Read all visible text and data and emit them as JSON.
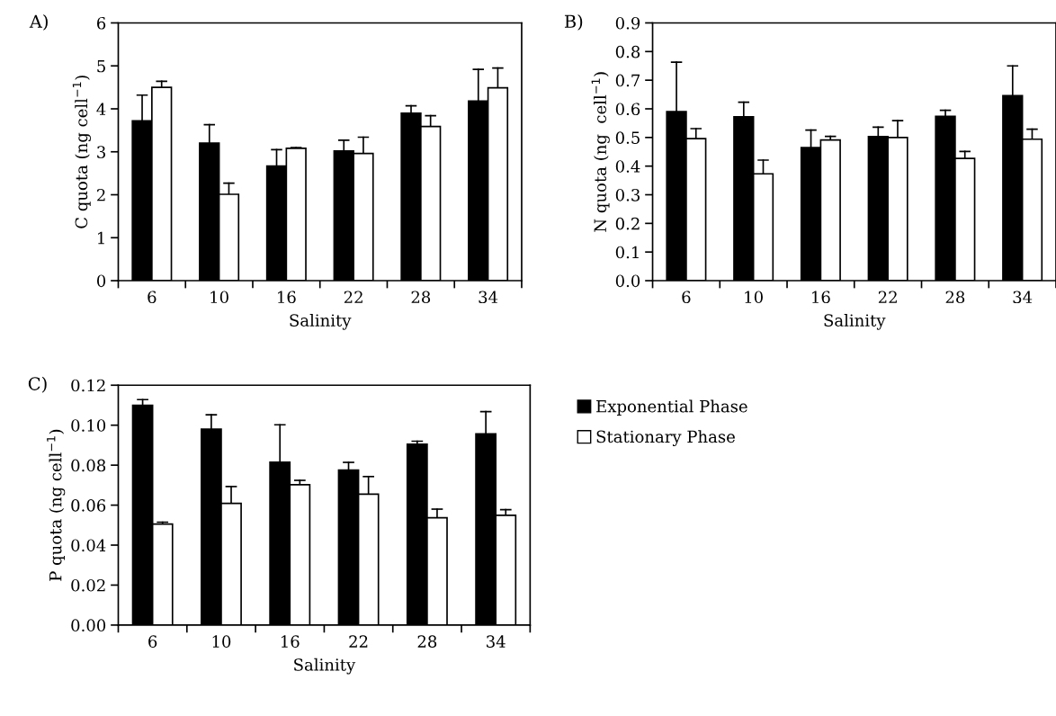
{
  "chart_data": [
    {
      "type": "bar",
      "title": "A)",
      "xlabel": "Salinity",
      "ylabel": "C quota (ng cell$^{−1}$)",
      "categories": [
        "6",
        "10",
        "16",
        "22",
        "28",
        "34"
      ],
      "ylim": [
        0,
        6
      ],
      "yticks": [
        0,
        1,
        2,
        3,
        4,
        5,
        6
      ],
      "grid": false,
      "legend": false,
      "series": [
        {
          "color": "#000000",
          "values": [
            3.72,
            3.2,
            2.67,
            3.02,
            3.9,
            4.18
          ],
          "errors": [
            [
              3.72,
              4.32
            ],
            [
              3.2,
              3.63
            ],
            [
              2.67,
              3.05
            ],
            [
              3.02,
              3.27
            ],
            [
              3.9,
              4.07
            ],
            [
              4.18,
              4.92
            ]
          ]
        },
        {
          "color": "#ffffff",
          "values": [
            4.5,
            2.01,
            3.08,
            2.96,
            3.59,
            4.49
          ],
          "errors": [
            [
              4.5,
              4.64
            ],
            [
              2.01,
              2.27
            ],
            [
              3.08,
              3.1
            ],
            [
              2.96,
              3.34
            ],
            [
              3.59,
              3.84
            ],
            [
              4.49,
              4.95
            ]
          ]
        }
      ]
    },
    {
      "type": "bar",
      "title": "B)",
      "xlabel": "Salinity",
      "ylabel": "N quota (ng  cell$^{−1}$)",
      "categories": [
        "6",
        "10",
        "16",
        "22",
        "28",
        "34"
      ],
      "ylim": [
        0,
        0.9
      ],
      "yticks": [
        {
          "value": 0,
          "label": "0.0"
        },
        0.1,
        0.2,
        0.3,
        0.4,
        0.5,
        0.6,
        0.7,
        0.8,
        0.9
      ],
      "grid": false,
      "legend": false,
      "series": [
        {
          "color": "#000000",
          "values": [
            0.59,
            0.572,
            0.465,
            0.503,
            0.574,
            0.646
          ],
          "errors": [
            [
              0.59,
              0.763
            ],
            [
              0.572,
              0.623
            ],
            [
              0.465,
              0.526
            ],
            [
              0.503,
              0.536
            ],
            [
              0.574,
              0.595
            ],
            [
              0.646,
              0.75
            ]
          ]
        },
        {
          "color": "#ffffff",
          "values": [
            0.496,
            0.373,
            0.491,
            0.5,
            0.427,
            0.494
          ],
          "errors": [
            [
              0.496,
              0.531
            ],
            [
              0.373,
              0.421
            ],
            [
              0.491,
              0.504
            ],
            [
              0.5,
              0.559
            ],
            [
              0.427,
              0.451
            ],
            [
              0.494,
              0.529
            ]
          ]
        }
      ]
    },
    {
      "type": "bar",
      "title": "C)",
      "xlabel": "Salinity",
      "ylabel": "P quota (ng cell$^{−1}$)",
      "categories": [
        "6",
        "10",
        "16",
        "22",
        "28",
        "34"
      ],
      "ylim": [
        0,
        0.12
      ],
      "yticks": [
        {
          "value": 0,
          "label": "0.00"
        },
        {
          "value": 0.02,
          "label": "0.02"
        },
        {
          "value": 0.04,
          "label": "0.04"
        },
        {
          "value": 0.06,
          "label": "0.06"
        },
        {
          "value": 0.08,
          "label": "0.08"
        },
        {
          "value": 0.1,
          "label": "0.10"
        },
        {
          "value": 0.12,
          "label": "0.12"
        }
      ],
      "grid": false,
      "legend": "top right",
      "series": [
        {
          "name": "Exponential Phase",
          "color": "#000000",
          "values": [
            0.11,
            0.098,
            0.0815,
            0.0775,
            0.0905,
            0.0957
          ],
          "errors": [
            [
              0.11,
              0.1128
            ],
            [
              0.098,
              0.1052
            ],
            [
              0.0815,
              0.1002
            ],
            [
              0.0775,
              0.0814
            ],
            [
              0.0905,
              0.092
            ],
            [
              0.0957,
              0.1068
            ]
          ]
        },
        {
          "name": "Stationary Phase",
          "color": "#ffffff",
          "values": [
            0.0505,
            0.0609,
            0.0702,
            0.0655,
            0.0537,
            0.0549
          ],
          "errors": [
            [
              0.0505,
              0.0515
            ],
            [
              0.0609,
              0.0693
            ],
            [
              0.0702,
              0.0724
            ],
            [
              0.0655,
              0.0743
            ],
            [
              0.0537,
              0.058
            ],
            [
              0.0549,
              0.0577
            ]
          ]
        }
      ]
    }
  ]
}
